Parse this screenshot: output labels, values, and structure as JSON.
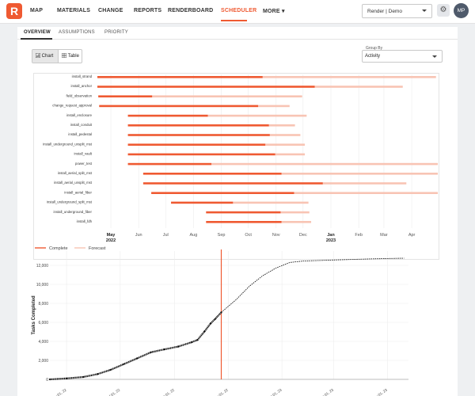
{
  "nav": {
    "logo": "R",
    "items": [
      "MAP",
      "MATERIALS",
      "CHANGE",
      "REPORTS",
      "RENDERBOARD",
      "SCHEDULER",
      "MORE ▾"
    ],
    "active_index": 5,
    "project": "Render | Demo",
    "settings_icon": "⚙",
    "avatar_initials": "MP"
  },
  "tabs": [
    "OVERVIEW",
    "ASSUMPTIONS",
    "PRIORITY"
  ],
  "view_toggle": {
    "chart_label": "Chart",
    "table_label": "Table",
    "selected": "Chart"
  },
  "group_by": {
    "label": "Group By",
    "value": "Activity"
  },
  "colors": {
    "accent": "#ef5a32",
    "forecast": "#f8c4b4",
    "complete": "#ef5a32"
  },
  "chart_data": [
    {
      "type": "bar",
      "subtype": "gantt",
      "time_axis": {
        "start": "2022-04-16",
        "end": "2023-04-30",
        "ticks": [
          {
            "date": "2022-05-01",
            "label": "May",
            "sublabel": "2022"
          },
          {
            "date": "2022-06-01",
            "label": "Jun",
            "sublabel": ""
          },
          {
            "date": "2022-07-01",
            "label": "Jul",
            "sublabel": ""
          },
          {
            "date": "2022-08-01",
            "label": "Aug",
            "sublabel": ""
          },
          {
            "date": "2022-09-01",
            "label": "Sep",
            "sublabel": ""
          },
          {
            "date": "2022-10-01",
            "label": "Oct",
            "sublabel": ""
          },
          {
            "date": "2022-11-01",
            "label": "Nov",
            "sublabel": ""
          },
          {
            "date": "2022-12-01",
            "label": "Dec",
            "sublabel": ""
          },
          {
            "date": "2023-01-01",
            "label": "Jan",
            "sublabel": "2023"
          },
          {
            "date": "2023-02-01",
            "label": "Feb",
            "sublabel": ""
          },
          {
            "date": "2023-03-01",
            "label": "Mar",
            "sublabel": ""
          },
          {
            "date": "2023-04-01",
            "label": "Apr",
            "sublabel": ""
          }
        ]
      },
      "rows": [
        {
          "activity": "install_strand",
          "start": "2022-04-16",
          "complete_end": "2022-10-17",
          "forecast_end": "2023-04-28"
        },
        {
          "activity": "install_anchor",
          "start": "2022-04-16",
          "complete_end": "2022-12-14",
          "forecast_end": "2023-03-22"
        },
        {
          "activity": "field_observation",
          "start": "2022-04-17",
          "complete_end": "2022-06-16",
          "forecast_end": "2022-11-30"
        },
        {
          "activity": "change_request_approval",
          "start": "2022-04-18",
          "complete_end": "2022-10-12",
          "forecast_end": "2022-11-16"
        },
        {
          "activity": "install_enclosure",
          "start": "2022-05-20",
          "complete_end": "2022-08-17",
          "forecast_end": "2022-12-05"
        },
        {
          "activity": "install_conduit",
          "start": "2022-05-20",
          "complete_end": "2022-10-24",
          "forecast_end": "2022-11-22"
        },
        {
          "activity": "install_pedestal",
          "start": "2022-05-20",
          "complete_end": "2022-10-25",
          "forecast_end": "2022-11-28"
        },
        {
          "activity": "install_underground_unsplit_mst",
          "start": "2022-05-20",
          "complete_end": "2022-10-20",
          "forecast_end": "2022-12-03"
        },
        {
          "activity": "install_vault",
          "start": "2022-05-20",
          "complete_end": "2022-10-31",
          "forecast_end": "2022-12-03"
        },
        {
          "activity": "power_test",
          "start": "2022-05-20",
          "complete_end": "2022-08-21",
          "forecast_end": "2023-04-30"
        },
        {
          "activity": "install_aerial_split_mst",
          "start": "2022-06-06",
          "complete_end": "2022-11-07",
          "forecast_end": "2023-04-30"
        },
        {
          "activity": "install_aerial_unsplit_mst",
          "start": "2022-06-06",
          "complete_end": "2022-12-23",
          "forecast_end": "2023-03-26"
        },
        {
          "activity": "install_aerial_fiber",
          "start": "2022-06-15",
          "complete_end": "2022-11-21",
          "forecast_end": "2023-04-30"
        },
        {
          "activity": "install_underground_split_mst",
          "start": "2022-07-07",
          "complete_end": "2022-09-14",
          "forecast_end": "2022-12-07"
        },
        {
          "activity": "install_underground_fiber",
          "start": "2022-08-15",
          "complete_end": "2022-11-06",
          "forecast_end": "2022-12-08"
        },
        {
          "activity": "install_fdh",
          "start": "2022-08-15",
          "complete_end": "2022-11-07",
          "forecast_end": "2022-12-10"
        }
      ]
    },
    {
      "type": "line",
      "legend": [
        {
          "name": "Complete",
          "style": "solid"
        },
        {
          "name": "Forecast",
          "style": "solid-light"
        }
      ],
      "ylabel": "Tasks Completed",
      "xlabel": "",
      "x_range": [
        "2022-04-12",
        "2023-05-25"
      ],
      "ylim": [
        0,
        13500
      ],
      "y_ticks": [
        0,
        2000,
        4000,
        6000,
        8000,
        10000,
        12000
      ],
      "y_tick_labels": [
        "0",
        "2,000",
        "4,000",
        "6,000",
        "8,000",
        "10,000",
        "12,000"
      ],
      "x_ticks": [
        {
          "date": "2022-05-01",
          "label": "May 01, 22"
        },
        {
          "date": "2022-07-01",
          "label": "Jul 01, 22"
        },
        {
          "date": "2022-09-01",
          "label": "Sep 01, 22"
        },
        {
          "date": "2022-11-01",
          "label": "Nov 01, 22"
        },
        {
          "date": "2023-01-01",
          "label": "Jan 01, 23"
        },
        {
          "date": "2023-03-01",
          "label": "Mar 01, 23"
        },
        {
          "date": "2023-05-01",
          "label": "May 01, 23"
        }
      ],
      "today_marker": "2022-10-24",
      "series": [
        {
          "name": "Complete",
          "style": "dotted-heavy",
          "points": [
            [
              "2022-04-12",
              0
            ],
            [
              "2022-05-01",
              100
            ],
            [
              "2022-05-20",
              250
            ],
            [
              "2022-06-05",
              550
            ],
            [
              "2022-06-20",
              1000
            ],
            [
              "2022-07-05",
              1600
            ],
            [
              "2022-07-20",
              2200
            ],
            [
              "2022-08-05",
              2850
            ],
            [
              "2022-08-20",
              3150
            ],
            [
              "2022-09-05",
              3450
            ],
            [
              "2022-09-20",
              3900
            ],
            [
              "2022-09-27",
              4150
            ],
            [
              "2022-10-05",
              5050
            ],
            [
              "2022-10-12",
              5900
            ],
            [
              "2022-10-17",
              6350
            ],
            [
              "2022-10-24",
              7050
            ]
          ]
        },
        {
          "name": "Forecast",
          "style": "dashed",
          "points": [
            [
              "2022-10-24",
              7050
            ],
            [
              "2022-11-10",
              8400
            ],
            [
              "2022-11-25",
              9800
            ],
            [
              "2022-12-10",
              10900
            ],
            [
              "2022-12-25",
              11700
            ],
            [
              "2023-01-10",
              12300
            ],
            [
              "2023-01-25",
              12450
            ],
            [
              "2023-02-15",
              12520
            ],
            [
              "2023-03-15",
              12600
            ],
            [
              "2023-04-15",
              12680
            ],
            [
              "2023-05-20",
              12750
            ]
          ]
        }
      ]
    }
  ]
}
